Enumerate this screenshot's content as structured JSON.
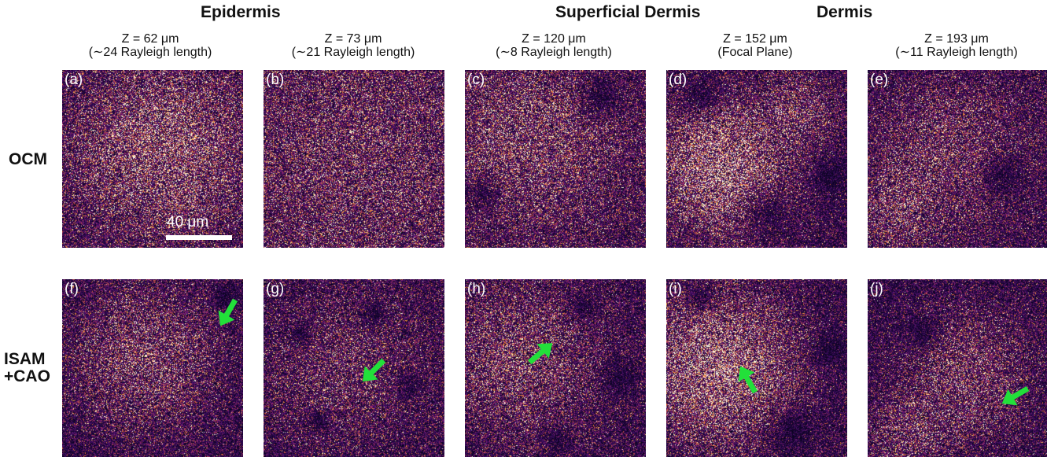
{
  "groups": {
    "epidermis": "Epidermis",
    "superficial_dermis": "Superficial Dermis",
    "dermis": "Dermis"
  },
  "columns": [
    {
      "z": "Z = 62 μm",
      "sub": "(∼24 Rayleigh length)"
    },
    {
      "z": "Z = 73 μm",
      "sub": "(∼21 Rayleigh length)"
    },
    {
      "z": "Z = 120 μm",
      "sub": "(∼8 Rayleigh length)"
    },
    {
      "z": "Z = 152 μm",
      "sub": "(Focal Plane)"
    },
    {
      "z": "Z = 193 μm",
      "sub": "(∼11 Rayleigh length)"
    }
  ],
  "rows": {
    "ocm": "OCM",
    "isam_line1": "ISAM",
    "isam_line2": "+CAO"
  },
  "panels": {
    "top": [
      "(a)",
      "(b)",
      "(c)",
      "(d)",
      "(e)"
    ],
    "bottom": [
      "(f)",
      "(g)",
      "(h)",
      "(i)",
      "(j)"
    ]
  },
  "scale_bar": "40 μm",
  "colors": {
    "arrow": "#22e03a",
    "background": "#ffffff",
    "colormap": "inferno-like (black-purple-orange-white)"
  }
}
